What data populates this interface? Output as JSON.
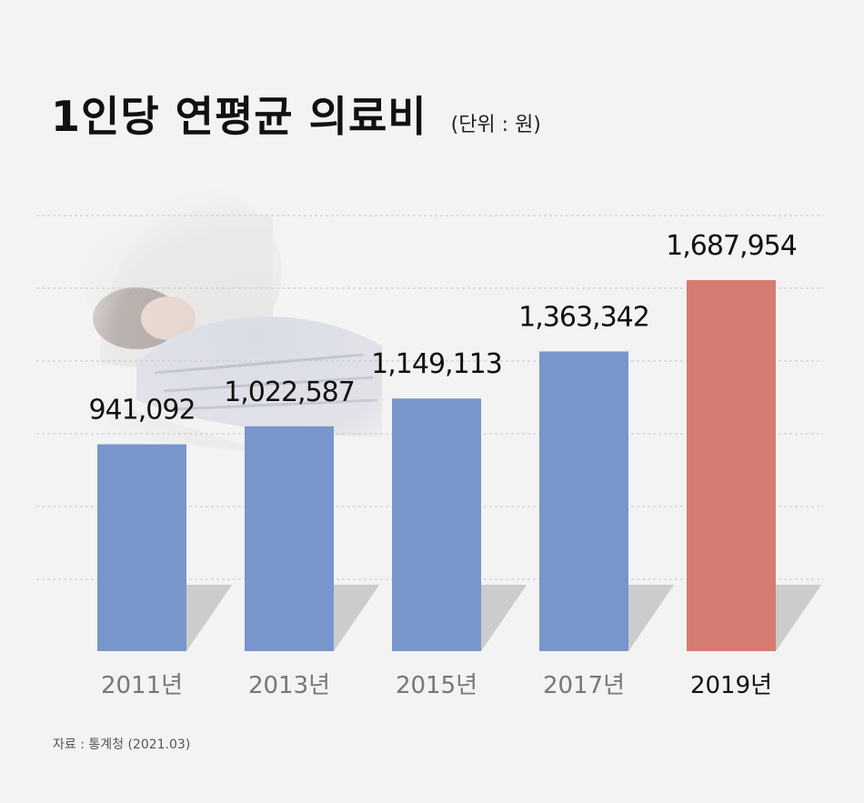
{
  "chart_data": {
    "type": "bar",
    "title": "1인당 연평균 의료비",
    "unit": "(단위 : 원)",
    "categories": [
      "2011년",
      "2013년",
      "2015년",
      "2017년",
      "2019년"
    ],
    "values": [
      941092,
      1022587,
      1149113,
      1363342,
      1687954
    ],
    "value_labels": [
      "941,092",
      "1,022,587",
      "1,149,113",
      "1,363,342",
      "1,687,954"
    ],
    "highlight_index": 4,
    "grid": true,
    "colors": {
      "bar": "#7796cb",
      "highlight": "#d47b72",
      "shadow": "#cccccc",
      "grid": "#c8c8c8",
      "category_text": "#777777",
      "highlight_text": "#111111"
    }
  },
  "source": "자료 : 통계청 (2021.03)",
  "background_image": "patient-in-mri-scanner"
}
